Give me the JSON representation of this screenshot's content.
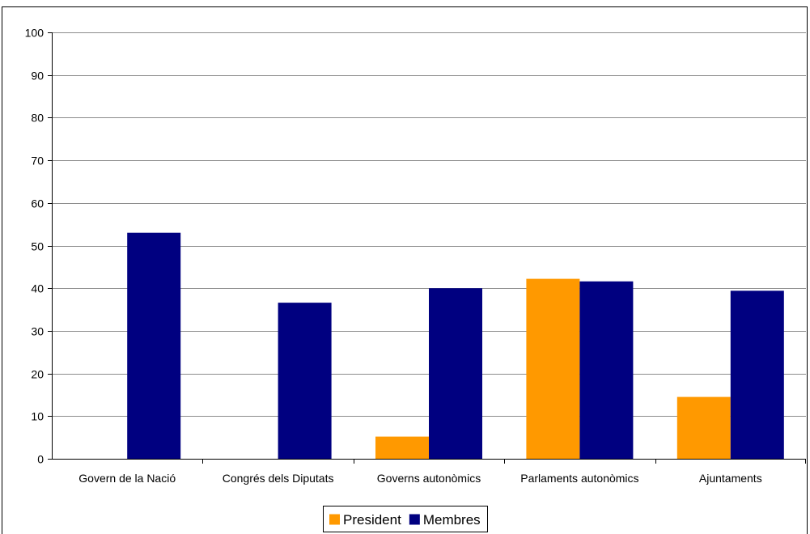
{
  "chart_data": {
    "type": "bar",
    "title": "",
    "xlabel": "",
    "ylabel": "",
    "categories": [
      "Govern de la Nació",
      "Congrés dels Diputats",
      "Governs autonòmics",
      "Parlaments autonòmics",
      "Ajuntaments"
    ],
    "series": [
      {
        "name": "President",
        "color": "#FF9900",
        "values": [
          0,
          0,
          5.2,
          42.2,
          14.5
        ]
      },
      {
        "name": "Membres",
        "color": "#000080",
        "values": [
          53,
          36.6,
          40,
          41.6,
          39.4
        ]
      }
    ],
    "ylim": [
      0,
      100
    ],
    "yticks": [
      0,
      10,
      20,
      30,
      40,
      50,
      60,
      70,
      80,
      90,
      100
    ],
    "grid": true,
    "legend_position": "bottom"
  }
}
